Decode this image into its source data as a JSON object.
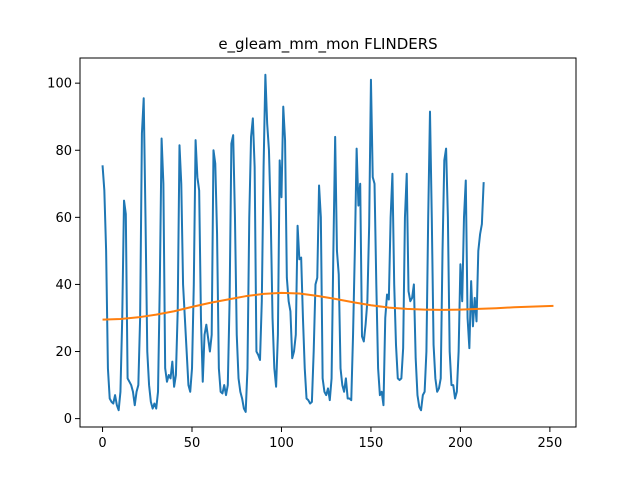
{
  "chart_data": {
    "type": "line",
    "title": "e_gleam_mm_mon FLINDERS",
    "xlabel": "",
    "ylabel": "",
    "xlim": [
      -12.6,
      264.6
    ],
    "ylim": [
      -2.5,
      107.5
    ],
    "x_ticks": [
      0,
      50,
      100,
      150,
      200,
      250
    ],
    "y_ticks": [
      0,
      20,
      40,
      60,
      80,
      100
    ],
    "grid": false,
    "legend": "none",
    "series": [
      {
        "color": "#1f77b4",
        "points": [
          [
            0,
            75.5
          ],
          [
            1,
            68
          ],
          [
            2,
            50
          ],
          [
            3,
            15
          ],
          [
            4,
            6
          ],
          [
            5,
            5
          ],
          [
            6,
            4.5
          ],
          [
            7,
            7
          ],
          [
            8,
            4
          ],
          [
            9,
            2.5
          ],
          [
            10,
            8
          ],
          [
            11,
            30
          ],
          [
            12,
            65
          ],
          [
            13,
            61
          ],
          [
            14,
            12
          ],
          [
            15,
            11
          ],
          [
            16,
            10
          ],
          [
            17,
            8
          ],
          [
            18,
            4
          ],
          [
            19,
            8
          ],
          [
            20,
            10
          ],
          [
            21,
            30
          ],
          [
            22,
            85
          ],
          [
            23,
            95.5
          ],
          [
            24,
            60
          ],
          [
            25,
            20
          ],
          [
            26,
            10
          ],
          [
            27,
            5
          ],
          [
            28,
            3
          ],
          [
            29,
            4.5
          ],
          [
            30,
            3
          ],
          [
            31,
            8
          ],
          [
            32,
            40
          ],
          [
            33,
            83.5
          ],
          [
            34,
            70
          ],
          [
            35,
            15
          ],
          [
            36,
            11
          ],
          [
            37,
            13
          ],
          [
            38,
            12
          ],
          [
            39,
            17
          ],
          [
            40,
            9.5
          ],
          [
            41,
            13
          ],
          [
            42,
            32
          ],
          [
            43,
            81.5
          ],
          [
            44,
            70
          ],
          [
            45,
            40
          ],
          [
            46,
            30
          ],
          [
            47,
            20
          ],
          [
            48,
            10
          ],
          [
            49,
            8
          ],
          [
            50,
            15
          ],
          [
            51,
            40
          ],
          [
            52,
            83
          ],
          [
            53,
            72
          ],
          [
            54,
            68
          ],
          [
            55,
            30
          ],
          [
            56,
            11
          ],
          [
            57,
            25
          ],
          [
            58,
            28
          ],
          [
            59,
            24
          ],
          [
            60,
            20
          ],
          [
            61,
            25
          ],
          [
            62,
            80
          ],
          [
            63,
            76
          ],
          [
            64,
            55
          ],
          [
            65,
            15
          ],
          [
            66,
            8
          ],
          [
            67,
            7.5
          ],
          [
            68,
            10
          ],
          [
            69,
            7
          ],
          [
            70,
            10
          ],
          [
            71,
            35
          ],
          [
            72,
            82
          ],
          [
            73,
            84.5
          ],
          [
            74,
            60
          ],
          [
            75,
            25
          ],
          [
            76,
            12
          ],
          [
            77,
            8
          ],
          [
            78,
            6
          ],
          [
            79,
            3
          ],
          [
            80,
            2
          ],
          [
            81,
            15
          ],
          [
            82,
            60
          ],
          [
            83,
            84
          ],
          [
            84,
            89.5
          ],
          [
            85,
            75
          ],
          [
            86,
            20
          ],
          [
            87,
            19
          ],
          [
            88,
            17.5
          ],
          [
            89,
            35
          ],
          [
            90,
            75
          ],
          [
            91,
            102.5
          ],
          [
            92,
            88
          ],
          [
            93,
            80
          ],
          [
            94,
            60
          ],
          [
            95,
            30
          ],
          [
            96,
            15
          ],
          [
            97,
            9.5
          ],
          [
            98,
            25
          ],
          [
            99,
            77
          ],
          [
            100,
            66
          ],
          [
            101,
            93
          ],
          [
            102,
            83
          ],
          [
            103,
            42
          ],
          [
            104,
            35
          ],
          [
            105,
            32
          ],
          [
            106,
            18
          ],
          [
            107,
            20
          ],
          [
            108,
            25
          ],
          [
            109,
            57.5
          ],
          [
            110,
            47.5
          ],
          [
            111,
            48
          ],
          [
            112,
            30
          ],
          [
            113,
            15
          ],
          [
            114,
            6
          ],
          [
            115,
            5.5
          ],
          [
            116,
            4.5
          ],
          [
            117,
            5
          ],
          [
            118,
            20
          ],
          [
            119,
            40
          ],
          [
            120,
            42
          ],
          [
            121,
            69.5
          ],
          [
            122,
            60
          ],
          [
            123,
            12
          ],
          [
            124,
            8
          ],
          [
            125,
            7
          ],
          [
            126,
            9
          ],
          [
            127,
            5.5
          ],
          [
            128,
            12
          ],
          [
            129,
            50
          ],
          [
            130,
            84
          ],
          [
            131,
            50
          ],
          [
            132,
            43
          ],
          [
            133,
            15
          ],
          [
            134,
            10
          ],
          [
            135,
            8
          ],
          [
            136,
            12
          ],
          [
            137,
            6
          ],
          [
            138,
            6
          ],
          [
            139,
            5.5
          ],
          [
            140,
            25
          ],
          [
            141,
            50
          ],
          [
            142,
            80.5
          ],
          [
            143,
            63.5
          ],
          [
            144,
            70
          ],
          [
            145,
            24.5
          ],
          [
            146,
            23
          ],
          [
            147,
            28
          ],
          [
            148,
            35
          ],
          [
            149,
            57.5
          ],
          [
            150,
            101
          ],
          [
            151,
            72
          ],
          [
            152,
            70
          ],
          [
            153,
            40
          ],
          [
            154,
            15
          ],
          [
            155,
            7
          ],
          [
            156,
            8
          ],
          [
            157,
            4
          ],
          [
            158,
            30
          ],
          [
            159,
            37
          ],
          [
            160,
            35.5
          ],
          [
            161,
            60
          ],
          [
            162,
            73
          ],
          [
            163,
            40
          ],
          [
            164,
            22
          ],
          [
            165,
            12
          ],
          [
            166,
            11.5
          ],
          [
            167,
            12
          ],
          [
            168,
            21
          ],
          [
            169,
            60
          ],
          [
            170,
            73
          ],
          [
            171,
            38
          ],
          [
            172,
            35
          ],
          [
            173,
            36
          ],
          [
            174,
            40
          ],
          [
            175,
            18
          ],
          [
            176,
            7
          ],
          [
            177,
            3.5
          ],
          [
            178,
            2.5
          ],
          [
            179,
            7
          ],
          [
            180,
            8
          ],
          [
            181,
            20
          ],
          [
            182,
            60
          ],
          [
            183,
            91.5
          ],
          [
            184,
            60
          ],
          [
            185,
            22
          ],
          [
            186,
            12
          ],
          [
            187,
            8
          ],
          [
            188,
            9
          ],
          [
            189,
            12
          ],
          [
            190,
            50
          ],
          [
            191,
            77
          ],
          [
            192,
            80.5
          ],
          [
            193,
            60
          ],
          [
            194,
            20
          ],
          [
            195,
            10
          ],
          [
            196,
            10
          ],
          [
            197,
            6
          ],
          [
            198,
            8
          ],
          [
            199,
            20
          ],
          [
            200,
            46
          ],
          [
            201,
            35
          ],
          [
            202,
            60
          ],
          [
            203,
            71
          ],
          [
            204,
            30
          ],
          [
            205,
            21
          ],
          [
            206,
            41
          ],
          [
            207,
            27.5
          ],
          [
            208,
            36
          ],
          [
            209,
            29
          ],
          [
            210,
            50
          ],
          [
            211,
            55
          ],
          [
            212,
            58
          ],
          [
            213,
            70.5
          ]
        ],
        "x_offset": 39
      },
      {
        "color": "#ff7f0e",
        "points": [
          [
            0,
            29.5
          ],
          [
            10,
            29.7
          ],
          [
            20,
            30.2
          ],
          [
            30,
            31
          ],
          [
            40,
            32
          ],
          [
            50,
            33.3
          ],
          [
            60,
            34.5
          ],
          [
            70,
            35.5
          ],
          [
            80,
            36.5
          ],
          [
            90,
            37.2
          ],
          [
            100,
            37.5
          ],
          [
            110,
            37.3
          ],
          [
            120,
            36.6
          ],
          [
            130,
            35.7
          ],
          [
            140,
            34.7
          ],
          [
            150,
            33.8
          ],
          [
            160,
            33.1
          ],
          [
            170,
            32.7
          ],
          [
            180,
            32.5
          ],
          [
            190,
            32.4
          ],
          [
            200,
            32.5
          ],
          [
            210,
            32.7
          ],
          [
            220,
            32.9
          ],
          [
            230,
            33.2
          ],
          [
            240,
            33.4
          ],
          [
            252,
            33.6
          ]
        ]
      }
    ]
  }
}
